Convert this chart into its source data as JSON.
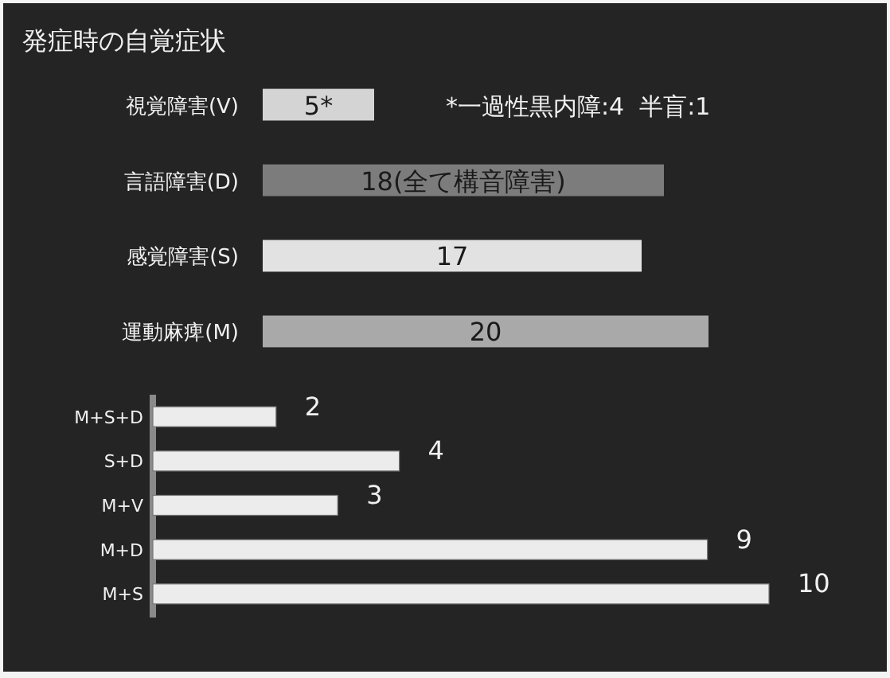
{
  "chart_data": [
    {
      "type": "bar",
      "orientation": "horizontal",
      "title": "発症時の自覚症状",
      "categories": [
        "視覚障害(V)",
        "言語障害(D)",
        "感覚障害(S)",
        "運動麻痺(M)"
      ],
      "values": [
        5,
        18,
        17,
        20
      ],
      "colors": [
        "#d4d4d4",
        "#7c7c7c",
        "#e2e2e2",
        "#a9a9a9"
      ],
      "value_labels": [
        "5*",
        "18(全て構音障害)",
        "17",
        "20"
      ],
      "annotations": [
        "*一過性黒内障:4  半盲:1"
      ]
    },
    {
      "type": "bar",
      "orientation": "horizontal",
      "categories": [
        "M+S+D",
        "S+D",
        "M+V",
        "M+D",
        "M+S"
      ],
      "values": [
        2,
        4,
        3,
        9,
        10
      ],
      "color": "#ececec",
      "data_labels": true
    }
  ]
}
